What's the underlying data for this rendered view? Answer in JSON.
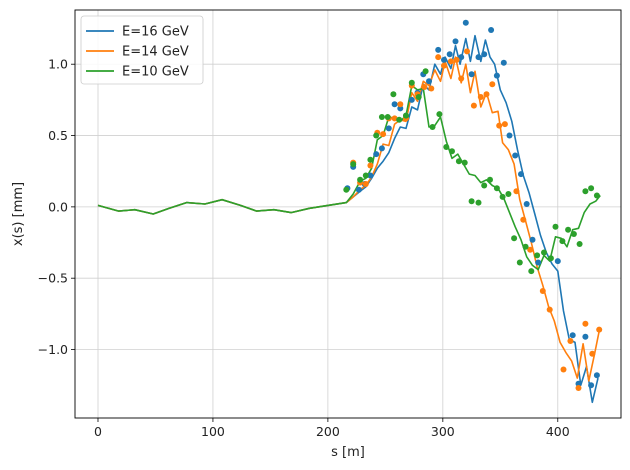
{
  "chart_data": {
    "type": "line",
    "title": "",
    "xlabel": "s [m]",
    "ylabel": "x(s) [mm]",
    "xlim": [
      -20,
      455
    ],
    "ylim": [
      -1.48,
      1.38
    ],
    "xticks": [
      0,
      100,
      200,
      300,
      400
    ],
    "yticks": [
      -1.0,
      -0.5,
      0.0,
      0.5,
      1.0
    ],
    "xtick_labels": [
      "0",
      "100",
      "200",
      "300",
      "400"
    ],
    "ytick_labels": [
      "−1.0",
      "−0.5",
      "0.0",
      "0.5",
      "1.0"
    ],
    "grid": true,
    "legend_position": "top-left",
    "series": [
      {
        "name": "E=16 GeV",
        "color": "#1f77b4",
        "line": [
          [
            0,
            0.01
          ],
          [
            18,
            -0.03
          ],
          [
            32,
            -0.02
          ],
          [
            48,
            -0.05
          ],
          [
            62,
            -0.01
          ],
          [
            77,
            0.03
          ],
          [
            93,
            0.02
          ],
          [
            108,
            0.05
          ],
          [
            124,
            0.01
          ],
          [
            138,
            -0.03
          ],
          [
            153,
            -0.02
          ],
          [
            168,
            -0.04
          ],
          [
            184,
            -0.01
          ],
          [
            200,
            0.01
          ],
          [
            216,
            0.03
          ],
          [
            222,
            0.07
          ],
          [
            228,
            0.11
          ],
          [
            233,
            0.14
          ],
          [
            238,
            0.2
          ],
          [
            243,
            0.27
          ],
          [
            248,
            0.32
          ],
          [
            253,
            0.38
          ],
          [
            258,
            0.48
          ],
          [
            263,
            0.56
          ],
          [
            268,
            0.55
          ],
          [
            273,
            0.7
          ],
          [
            278,
            0.68
          ],
          [
            283,
            0.86
          ],
          [
            288,
            0.82
          ],
          [
            293,
            1.0
          ],
          [
            298,
            0.93
          ],
          [
            302,
            1.05
          ],
          [
            307,
            0.97
          ],
          [
            311,
            1.13
          ],
          [
            315,
            1.0
          ],
          [
            320,
            1.18
          ],
          [
            324,
            1.02
          ],
          [
            328,
            1.2
          ],
          [
            333,
            1.02
          ],
          [
            337,
            1.17
          ],
          [
            341,
            1.05
          ],
          [
            345,
            1.0
          ],
          [
            350,
            0.82
          ],
          [
            355,
            0.73
          ],
          [
            360,
            0.6
          ],
          [
            365,
            0.4
          ],
          [
            370,
            0.22
          ],
          [
            375,
            0.1
          ],
          [
            380,
            -0.05
          ],
          [
            385,
            -0.2
          ],
          [
            390,
            -0.32
          ],
          [
            395,
            -0.4
          ],
          [
            400,
            -0.45
          ],
          [
            405,
            -0.73
          ],
          [
            410,
            -0.93
          ],
          [
            415,
            -0.95
          ],
          [
            420,
            -1.25
          ],
          [
            425,
            -1.12
          ],
          [
            430,
            -1.37
          ],
          [
            435,
            -1.2
          ]
        ],
        "points": [
          [
            217,
            0.13
          ],
          [
            222,
            0.28
          ],
          [
            227,
            0.12
          ],
          [
            232,
            0.16
          ],
          [
            237,
            0.22
          ],
          [
            242,
            0.37
          ],
          [
            247,
            0.41
          ],
          [
            253,
            0.55
          ],
          [
            258,
            0.72
          ],
          [
            263,
            0.69
          ],
          [
            268,
            0.64
          ],
          [
            273,
            0.75
          ],
          [
            278,
            0.8
          ],
          [
            283,
            0.93
          ],
          [
            288,
            0.88
          ],
          [
            296,
            1.1
          ],
          [
            301,
            1.03
          ],
          [
            306,
            1.07
          ],
          [
            311,
            1.16
          ],
          [
            316,
            1.05
          ],
          [
            320,
            1.29
          ],
          [
            325,
            0.93
          ],
          [
            331,
            1.05
          ],
          [
            336,
            1.07
          ],
          [
            342,
            1.24
          ],
          [
            347,
            0.92
          ],
          [
            353,
            1.01
          ],
          [
            358,
            0.5
          ],
          [
            363,
            0.36
          ],
          [
            368,
            0.23
          ],
          [
            373,
            0.02
          ],
          [
            378,
            -0.23
          ],
          [
            383,
            -0.39
          ],
          [
            400,
            -0.38
          ],
          [
            413,
            -0.9
          ],
          [
            418,
            -1.24
          ],
          [
            424,
            -0.91
          ],
          [
            429,
            -1.25
          ],
          [
            434,
            -1.18
          ]
        ]
      },
      {
        "name": "E=14 GeV",
        "color": "#ff7f0e",
        "line": [
          [
            0,
            0.01
          ],
          [
            18,
            -0.03
          ],
          [
            32,
            -0.02
          ],
          [
            48,
            -0.05
          ],
          [
            62,
            -0.01
          ],
          [
            77,
            0.03
          ],
          [
            93,
            0.02
          ],
          [
            108,
            0.05
          ],
          [
            124,
            0.01
          ],
          [
            138,
            -0.03
          ],
          [
            153,
            -0.02
          ],
          [
            168,
            -0.04
          ],
          [
            184,
            -0.01
          ],
          [
            200,
            0.01
          ],
          [
            216,
            0.03
          ],
          [
            222,
            0.07
          ],
          [
            228,
            0.12
          ],
          [
            233,
            0.15
          ],
          [
            238,
            0.21
          ],
          [
            243,
            0.3
          ],
          [
            248,
            0.44
          ],
          [
            253,
            0.43
          ],
          [
            258,
            0.58
          ],
          [
            263,
            0.61
          ],
          [
            268,
            0.6
          ],
          [
            273,
            0.8
          ],
          [
            278,
            0.74
          ],
          [
            283,
            0.88
          ],
          [
            288,
            0.85
          ],
          [
            293,
            0.96
          ],
          [
            298,
            0.88
          ],
          [
            302,
            1.02
          ],
          [
            307,
            0.9
          ],
          [
            311,
            1.05
          ],
          [
            316,
            0.87
          ],
          [
            320,
            1.0
          ],
          [
            324,
            0.8
          ],
          [
            328,
            0.95
          ],
          [
            333,
            0.7
          ],
          [
            338,
            0.8
          ],
          [
            343,
            0.66
          ],
          [
            348,
            0.67
          ],
          [
            352,
            0.45
          ],
          [
            357,
            0.4
          ],
          [
            362,
            0.3
          ],
          [
            367,
            0.05
          ],
          [
            372,
            -0.1
          ],
          [
            377,
            -0.25
          ],
          [
            382,
            -0.42
          ],
          [
            387,
            -0.55
          ],
          [
            392,
            -0.7
          ],
          [
            397,
            -0.8
          ],
          [
            402,
            -0.95
          ],
          [
            407,
            -1.02
          ],
          [
            412,
            -1.08
          ],
          [
            417,
            -1.2
          ],
          [
            422,
            -0.96
          ],
          [
            427,
            -1.22
          ],
          [
            432,
            -1.03
          ],
          [
            436,
            -0.87
          ]
        ],
        "points": [
          [
            222,
            0.31
          ],
          [
            228,
            0.17
          ],
          [
            233,
            0.16
          ],
          [
            237,
            0.29
          ],
          [
            243,
            0.52
          ],
          [
            248,
            0.51
          ],
          [
            253,
            0.62
          ],
          [
            258,
            0.62
          ],
          [
            263,
            0.72
          ],
          [
            268,
            0.62
          ],
          [
            273,
            0.85
          ],
          [
            278,
            0.79
          ],
          [
            284,
            0.84
          ],
          [
            290,
            0.83
          ],
          [
            296,
            1.05
          ],
          [
            301,
            0.99
          ],
          [
            307,
            1.02
          ],
          [
            312,
            1.03
          ],
          [
            316,
            0.9
          ],
          [
            321,
            1.09
          ],
          [
            327,
            0.71
          ],
          [
            333,
            0.77
          ],
          [
            338,
            0.79
          ],
          [
            343,
            0.86
          ],
          [
            349,
            0.57
          ],
          [
            354,
            0.58
          ],
          [
            364,
            0.11
          ],
          [
            370,
            -0.09
          ],
          [
            376,
            -0.3
          ],
          [
            387,
            -0.59
          ],
          [
            393,
            -0.72
          ],
          [
            405,
            -1.14
          ],
          [
            411,
            -0.94
          ],
          [
            418,
            -1.27
          ],
          [
            424,
            -0.82
          ],
          [
            430,
            -1.03
          ],
          [
            436,
            -0.86
          ]
        ]
      },
      {
        "name": "E=10 GeV",
        "color": "#2ca02c",
        "line": [
          [
            0,
            0.01
          ],
          [
            18,
            -0.03
          ],
          [
            32,
            -0.02
          ],
          [
            48,
            -0.05
          ],
          [
            62,
            -0.01
          ],
          [
            77,
            0.03
          ],
          [
            93,
            0.02
          ],
          [
            108,
            0.05
          ],
          [
            124,
            0.01
          ],
          [
            138,
            -0.03
          ],
          [
            153,
            -0.02
          ],
          [
            168,
            -0.04
          ],
          [
            184,
            -0.01
          ],
          [
            200,
            0.01
          ],
          [
            216,
            0.03
          ],
          [
            222,
            0.09
          ],
          [
            228,
            0.18
          ],
          [
            233,
            0.2
          ],
          [
            238,
            0.27
          ],
          [
            243,
            0.47
          ],
          [
            248,
            0.5
          ],
          [
            253,
            0.63
          ],
          [
            258,
            0.62
          ],
          [
            263,
            0.6
          ],
          [
            268,
            0.64
          ],
          [
            273,
            0.85
          ],
          [
            278,
            0.82
          ],
          [
            283,
            0.83
          ],
          [
            288,
            0.56
          ],
          [
            293,
            0.57
          ],
          [
            298,
            0.63
          ],
          [
            303,
            0.46
          ],
          [
            308,
            0.34
          ],
          [
            313,
            0.37
          ],
          [
            318,
            0.3
          ],
          [
            323,
            0.23
          ],
          [
            328,
            0.22
          ],
          [
            333,
            0.17
          ],
          [
            338,
            0.19
          ],
          [
            343,
            0.15
          ],
          [
            348,
            0.13
          ],
          [
            353,
            0.06
          ],
          [
            358,
            -0.04
          ],
          [
            363,
            -0.14
          ],
          [
            368,
            -0.23
          ],
          [
            373,
            -0.35
          ],
          [
            378,
            -0.41
          ],
          [
            383,
            -0.44
          ],
          [
            388,
            -0.34
          ],
          [
            393,
            -0.38
          ],
          [
            398,
            -0.21
          ],
          [
            403,
            -0.22
          ],
          [
            408,
            -0.28
          ],
          [
            413,
            -0.16
          ],
          [
            418,
            -0.15
          ],
          [
            423,
            -0.04
          ],
          [
            428,
            0.02
          ],
          [
            433,
            0.04
          ],
          [
            437,
            0.08
          ]
        ],
        "points": [
          [
            216,
            0.12
          ],
          [
            222,
            0.3
          ],
          [
            228,
            0.19
          ],
          [
            233,
            0.22
          ],
          [
            237,
            0.33
          ],
          [
            242,
            0.5
          ],
          [
            247,
            0.63
          ],
          [
            252,
            0.63
          ],
          [
            257,
            0.79
          ],
          [
            262,
            0.61
          ],
          [
            268,
            0.64
          ],
          [
            273,
            0.87
          ],
          [
            279,
            0.77
          ],
          [
            285,
            0.95
          ],
          [
            291,
            0.56
          ],
          [
            297,
            0.65
          ],
          [
            303,
            0.42
          ],
          [
            308,
            0.39
          ],
          [
            314,
            0.32
          ],
          [
            319,
            0.31
          ],
          [
            325,
            0.04
          ],
          [
            331,
            0.03
          ],
          [
            336,
            0.15
          ],
          [
            341,
            0.19
          ],
          [
            347,
            0.13
          ],
          [
            352,
            0.07
          ],
          [
            357,
            0.09
          ],
          [
            362,
            -0.22
          ],
          [
            367,
            -0.39
          ],
          [
            372,
            -0.28
          ],
          [
            377,
            -0.45
          ],
          [
            382,
            -0.34
          ],
          [
            388,
            -0.32
          ],
          [
            394,
            -0.36
          ],
          [
            398,
            -0.14
          ],
          [
            404,
            -0.24
          ],
          [
            409,
            -0.16
          ],
          [
            414,
            -0.19
          ],
          [
            419,
            -0.26
          ],
          [
            424,
            0.11
          ],
          [
            429,
            0.13
          ],
          [
            434,
            0.08
          ]
        ]
      }
    ]
  }
}
